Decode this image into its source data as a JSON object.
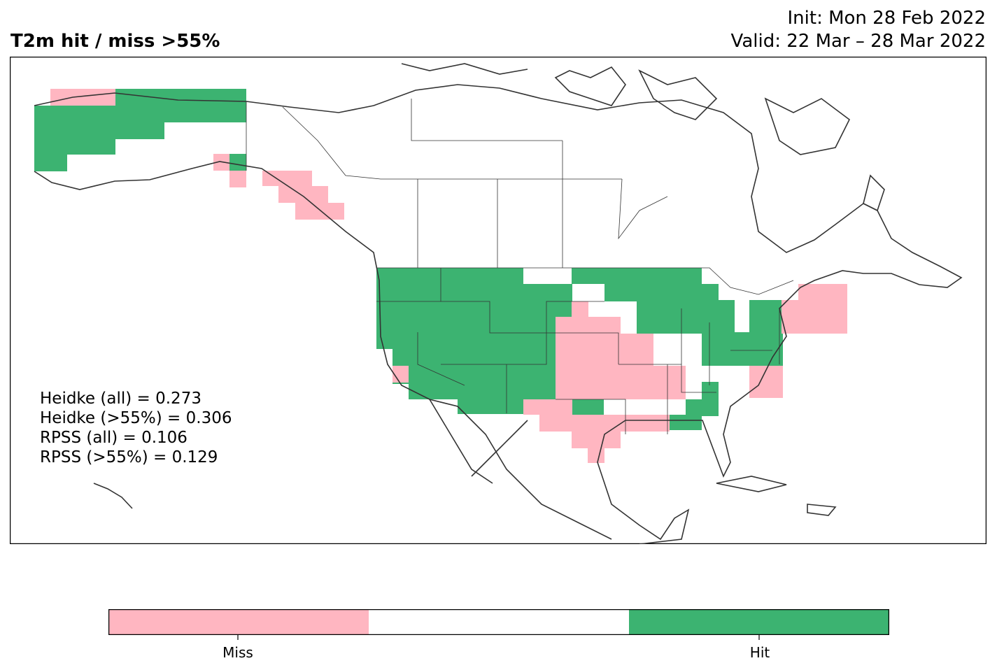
{
  "header": {
    "title": "T2m hit / miss  >55%",
    "init": "Init: Mon 28 Feb 2022",
    "valid": "Valid: 22 Mar – 28 Mar 2022"
  },
  "stats": [
    "Heidke (all) = 0.273",
    "Heidke (>55%) = 0.306",
    "RPSS (all) = 0.106",
    "RPSS (>55%) = 0.129"
  ],
  "legend": {
    "miss_label": "Miss",
    "hit_label": "Hit",
    "colors": {
      "miss": "#ffb6c1",
      "neutral": "#ffffff",
      "hit": "#3cb371"
    }
  },
  "map": {
    "region": "North America",
    "colors": {
      "land_outline": "#333333",
      "miss": "#ffb6c1",
      "hit": "#3cb371"
    }
  }
}
